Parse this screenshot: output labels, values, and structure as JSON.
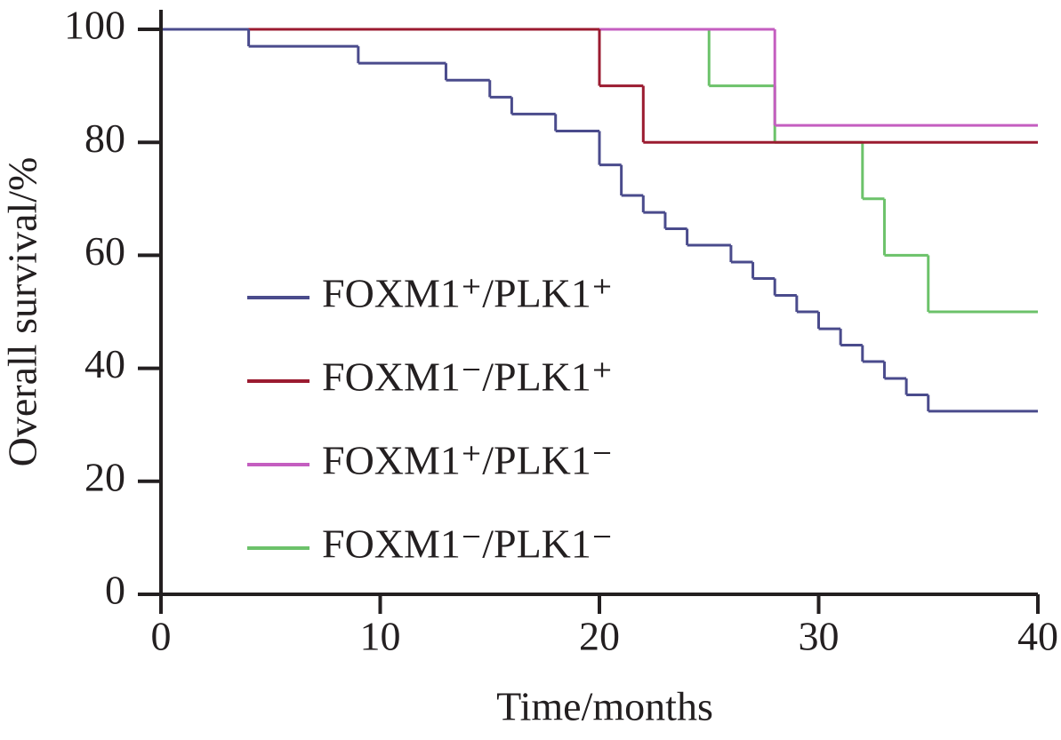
{
  "chart_data": {
    "type": "step",
    "x_label": "Time/months",
    "y_label": "Overall survival/%",
    "xlim": [
      0,
      40
    ],
    "ylim": [
      0,
      100
    ],
    "xticks": [
      0,
      10,
      20,
      30,
      40
    ],
    "yticks": [
      0,
      20,
      40,
      60,
      80,
      100
    ],
    "series": [
      {
        "name": "FOXM1⁺/PLK1⁺",
        "color": "#4a4b8c",
        "x": [
          0,
          4,
          9,
          13,
          15,
          16,
          18,
          20,
          21,
          22,
          23,
          24,
          26,
          27,
          28,
          29,
          30,
          31,
          32,
          33,
          34,
          35,
          40
        ],
        "values": [
          100,
          97,
          94,
          91,
          88,
          85,
          82,
          76,
          70.6,
          67.6,
          64.7,
          61.8,
          58.8,
          55.9,
          52.9,
          50,
          47,
          44.1,
          41.2,
          38.2,
          35.3,
          32.4,
          32.4
        ]
      },
      {
        "name": "FOXM1⁻/PLK1⁺",
        "color": "#9b1b30",
        "x": [
          0,
          20,
          22,
          40
        ],
        "values": [
          100,
          90,
          80,
          80
        ]
      },
      {
        "name": "FOXM1⁺/PLK1⁻",
        "color": "#c45ec0",
        "x": [
          0,
          28,
          40
        ],
        "values": [
          100,
          83,
          83
        ]
      },
      {
        "name": "FOXM1⁻/PLK1⁻",
        "color": "#6cc26a",
        "x": [
          0,
          25,
          28,
          32,
          33,
          35,
          40
        ],
        "values": [
          100,
          90,
          80,
          70,
          60,
          50,
          50
        ]
      }
    ]
  }
}
